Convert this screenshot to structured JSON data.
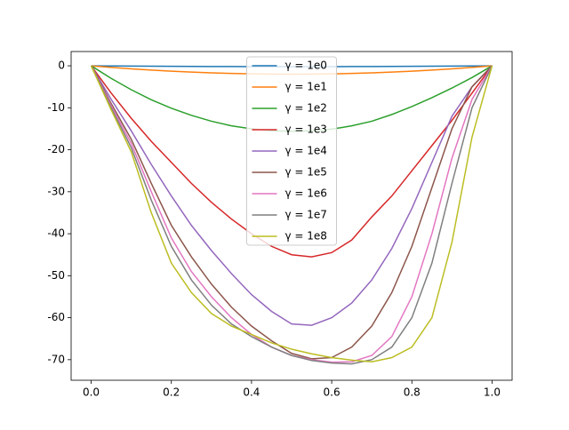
{
  "chart_data": {
    "type": "line",
    "x": [
      0,
      0.05,
      0.1,
      0.15,
      0.2,
      0.25,
      0.3,
      0.35,
      0.4,
      0.45,
      0.5,
      0.55,
      0.6,
      0.65,
      0.7,
      0.75,
      0.8,
      0.85,
      0.9,
      0.95,
      1
    ],
    "series": [
      {
        "name": "γ = 1e0",
        "color": "#1f77b4",
        "values": [
          0,
          -0.04,
          -0.07,
          -0.1,
          -0.13,
          -0.15,
          -0.17,
          -0.18,
          -0.19,
          -0.2,
          -0.2,
          -0.2,
          -0.19,
          -0.18,
          -0.17,
          -0.15,
          -0.13,
          -0.1,
          -0.07,
          -0.04,
          0
        ]
      },
      {
        "name": "γ = 1e1",
        "color": "#ff7f0e",
        "values": [
          0,
          -0.38,
          -0.72,
          -1.02,
          -1.28,
          -1.5,
          -1.68,
          -1.82,
          -1.92,
          -1.98,
          -2,
          -1.98,
          -1.92,
          -1.82,
          -1.68,
          -1.5,
          -1.28,
          -1.02,
          -0.72,
          -0.38,
          0
        ]
      },
      {
        "name": "γ = 1e2",
        "color": "#2ca02c",
        "values": [
          0,
          -3,
          -5.7,
          -8.1,
          -10.1,
          -11.8,
          -13.2,
          -14.3,
          -15,
          -15.5,
          -15.6,
          -15.5,
          -15.1,
          -14.3,
          -13.2,
          -11.6,
          -9.7,
          -7.6,
          -5.3,
          -2.8,
          0
        ]
      },
      {
        "name": "γ = 1e3",
        "color": "#d62728",
        "values": [
          0,
          -6.5,
          -12.5,
          -18,
          -23,
          -28,
          -32.5,
          -36.5,
          -40,
          -43,
          -45,
          -45.5,
          -44.5,
          -41.5,
          -36,
          -31,
          -25,
          -19,
          -13,
          -6.5,
          0
        ]
      },
      {
        "name": "γ = 1e4",
        "color": "#9467bd",
        "values": [
          0,
          -8,
          -15.5,
          -23.5,
          -31,
          -38,
          -44,
          -49.5,
          -54.5,
          -58.5,
          -61.5,
          -61.8,
          -60,
          -56.5,
          -51,
          -43.5,
          -34,
          -23,
          -12,
          -5,
          0
        ]
      },
      {
        "name": "γ = 1e5",
        "color": "#8c564b",
        "values": [
          0,
          -9,
          -17.5,
          -28,
          -38,
          -45.5,
          -52,
          -57.5,
          -62,
          -65.5,
          -68.5,
          -69.8,
          -69.5,
          -67,
          -62,
          -54,
          -43,
          -29,
          -15,
          -5,
          0
        ]
      },
      {
        "name": "γ = 1e6",
        "color": "#e377c2",
        "values": [
          0,
          -9.5,
          -18.5,
          -30,
          -41,
          -49,
          -55,
          -60,
          -64,
          -67,
          -69,
          -70,
          -70.6,
          -70.5,
          -69,
          -64.5,
          -55,
          -40,
          -22,
          -8,
          0
        ]
      },
      {
        "name": "γ = 1e7",
        "color": "#7f7f7f",
        "values": [
          0,
          -10,
          -19.5,
          -32,
          -43,
          -51,
          -57,
          -61.5,
          -64.5,
          -67,
          -69,
          -70.2,
          -70.8,
          -71,
          -70,
          -67,
          -60,
          -47,
          -28,
          -10,
          0
        ]
      },
      {
        "name": "γ = 1e8",
        "color": "#bcbd22",
        "values": [
          0,
          -10.5,
          -20.5,
          -35,
          -47,
          -54,
          -59,
          -62,
          -64,
          -66,
          -67.5,
          -68.6,
          -69.5,
          -70.1,
          -70.5,
          -69.5,
          -67,
          -60,
          -42,
          -17,
          0
        ]
      }
    ],
    "xlim": [
      -0.05,
      1.05
    ],
    "ylim": [
      -74.9,
      3.4
    ],
    "xticks": [
      {
        "value": 0,
        "label": "0.0"
      },
      0.2,
      0.4,
      0.6,
      0.8,
      {
        "value": 1,
        "label": "1.0"
      }
    ],
    "yticks": [
      -70,
      -60,
      -50,
      -40,
      -30,
      -20,
      -10,
      0
    ],
    "legend": "upper center"
  }
}
